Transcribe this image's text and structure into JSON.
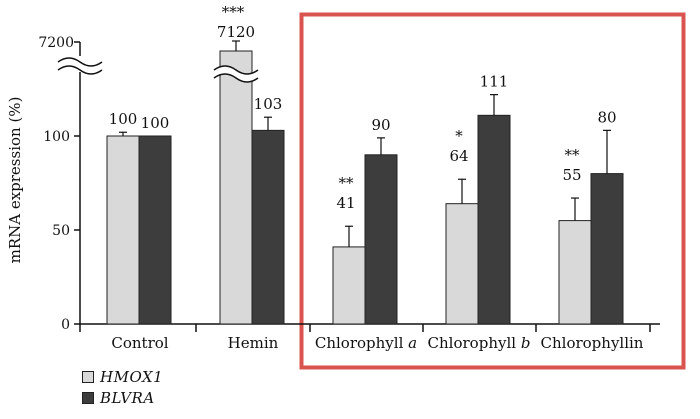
{
  "chart_data": {
    "type": "bar",
    "title": "",
    "xlabel": "",
    "ylabel": "mRNA expression (%)",
    "ylim": [
      0,
      140
    ],
    "axis_break": {
      "top_label": "7200",
      "break_between": [
        100,
        7200
      ]
    },
    "yticks": [
      {
        "value": 0,
        "label": "0"
      },
      {
        "value": 50,
        "label": "50"
      },
      {
        "value": 100,
        "label": "100"
      }
    ],
    "categories": [
      "Control",
      "Hemin",
      "Chlorophyll a",
      "Chlorophyll b",
      "Chlorophyllin"
    ],
    "category_display": [
      {
        "text": "Control",
        "italic": ""
      },
      {
        "text": "Hemin",
        "italic": ""
      },
      {
        "text": "Chlorophyll ",
        "italic": "a"
      },
      {
        "text": "Chlorophyll ",
        "italic": "b"
      },
      {
        "text": "Chlorophyllin",
        "italic": ""
      }
    ],
    "series": [
      {
        "name": "HMOX1",
        "color": "#d9d9d9",
        "values": [
          100,
          7120,
          41,
          64,
          55
        ],
        "error": [
          2,
          0,
          11,
          13,
          12
        ],
        "labels": [
          "100",
          "7120",
          "41",
          "64",
          "55"
        ],
        "significance": [
          "",
          "***",
          "**",
          "*",
          "**"
        ]
      },
      {
        "name": "BLVRA",
        "color": "#3d3d3d",
        "values": [
          100,
          103,
          90,
          111,
          80
        ],
        "error": [
          0,
          7,
          9,
          11,
          23
        ],
        "labels": [
          "100",
          "103",
          "90",
          "111",
          "80"
        ],
        "significance": [
          "",
          "",
          "",
          "",
          ""
        ]
      }
    ],
    "highlight": {
      "categories": [
        "Chlorophyll a",
        "Chlorophyll b",
        "Chlorophyllin"
      ],
      "color": "#d9534f"
    }
  }
}
